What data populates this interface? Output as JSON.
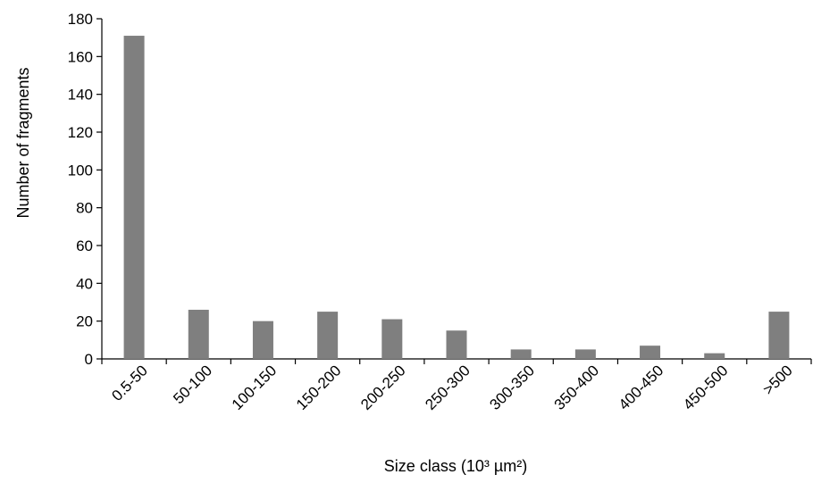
{
  "chart_data": {
    "type": "bar",
    "title": "",
    "xlabel": "Size class (10³ µm²)",
    "ylabel": "Number of fragments",
    "categories": [
      "0.5-50",
      "50-100",
      "100-150",
      "150-200",
      "200-250",
      "250-300",
      "300-350",
      "350-400",
      "400-450",
      "450-500",
      ">500"
    ],
    "values": [
      171,
      26,
      20,
      25,
      21,
      15,
      5,
      5,
      7,
      3,
      25
    ],
    "ylim": [
      0,
      180
    ],
    "yticks": [
      0,
      20,
      40,
      60,
      80,
      100,
      120,
      140,
      160,
      180
    ],
    "grid": false,
    "legend": "none",
    "bar_color": "#7f7f7f"
  }
}
